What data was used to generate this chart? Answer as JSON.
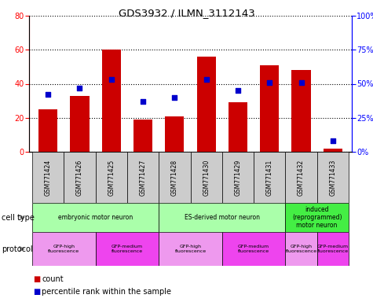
{
  "title": "GDS3932 / ILMN_3112143",
  "samples": [
    "GSM771424",
    "GSM771426",
    "GSM771425",
    "GSM771427",
    "GSM771428",
    "GSM771430",
    "GSM771429",
    "GSM771431",
    "GSM771432",
    "GSM771433"
  ],
  "counts": [
    25,
    33,
    60,
    19,
    21,
    56,
    29,
    51,
    48,
    2
  ],
  "percentile_ranks": [
    42,
    47,
    53,
    37,
    40,
    53,
    45,
    51,
    51,
    8
  ],
  "ylim_left": [
    0,
    80
  ],
  "ylim_right": [
    0,
    100
  ],
  "yticks_left": [
    0,
    20,
    40,
    60,
    80
  ],
  "yticks_right": [
    0,
    25,
    50,
    75,
    100
  ],
  "ytick_labels_right": [
    "0%",
    "25%",
    "50%",
    "75%",
    "100%"
  ],
  "bar_color": "#cc0000",
  "dot_color": "#0000cc",
  "cell_types": [
    {
      "label": "embryonic motor neuron",
      "start": 0,
      "end": 4,
      "color": "#aaffaa"
    },
    {
      "label": "ES-derived motor neuron",
      "start": 4,
      "end": 8,
      "color": "#aaffaa"
    },
    {
      "label": "induced\n(reprogrammed)\nmotor neuron",
      "start": 8,
      "end": 10,
      "color": "#44ee44"
    }
  ],
  "protocols": [
    {
      "label": "GFP-high\nfluorescence",
      "start": 0,
      "end": 2,
      "color": "#ee99ee"
    },
    {
      "label": "GFP-medium\nfluorescence",
      "start": 2,
      "end": 4,
      "color": "#ee44ee"
    },
    {
      "label": "GFP-high\nfluorescence",
      "start": 4,
      "end": 6,
      "color": "#ee99ee"
    },
    {
      "label": "GFP-medium\nfluorescence",
      "start": 6,
      "end": 8,
      "color": "#ee44ee"
    },
    {
      "label": "GFP-high\nfluorescence",
      "start": 8,
      "end": 9,
      "color": "#ee99ee"
    },
    {
      "label": "GFP-medium\nfluorescence",
      "start": 9,
      "end": 10,
      "color": "#ee44ee"
    }
  ],
  "legend_count_label": "count",
  "legend_pct_label": "percentile rank within the sample",
  "sample_bg_color": "#cccccc",
  "cell_type_label": "cell type",
  "protocol_label": "protocol"
}
